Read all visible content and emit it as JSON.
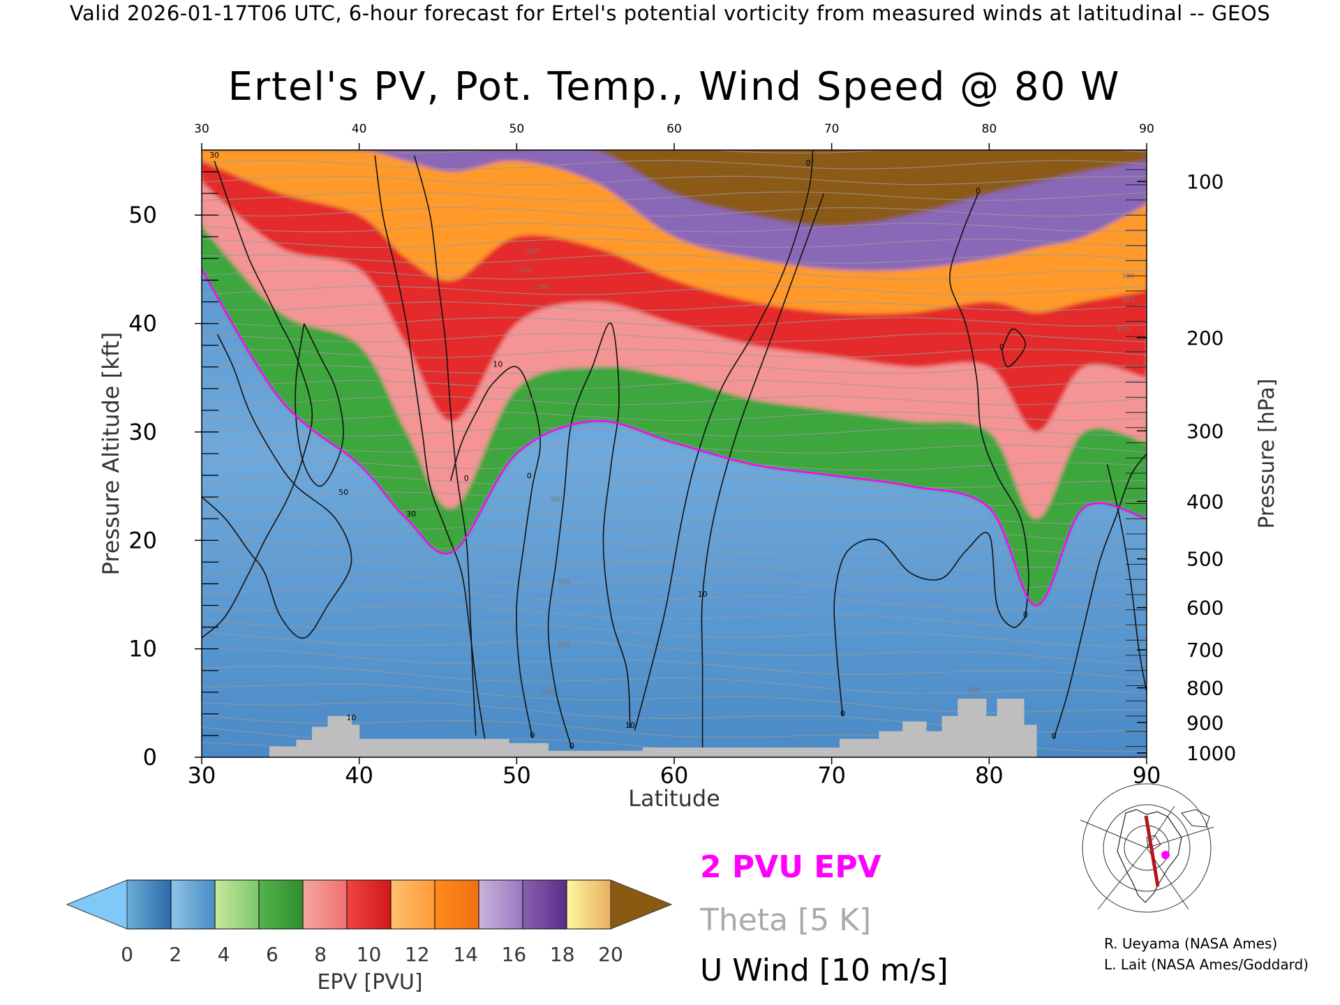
{
  "header": {
    "valid_line": "Valid 2026-01-17T06 UTC, 6-hour forecast for Ertel's potential vorticity from measured winds at latitudinal -- GEOS"
  },
  "chart_data": {
    "type": "heatmap",
    "title": "Ertel's PV, Pot. Temp., Wind Speed @ 80 W",
    "xlabel": "Latitude",
    "ylabel_left": "Pressure Altitude [kft]",
    "ylabel_right": "Pressure [hPa]",
    "xlim": [
      30,
      90
    ],
    "ylim": [
      0,
      56
    ],
    "x_ticks": [
      30,
      40,
      50,
      60,
      70,
      80,
      90
    ],
    "top_x_ticks": [
      "30",
      "40",
      "50",
      "60",
      "70",
      "80",
      "90"
    ],
    "y_ticks": [
      0,
      10,
      20,
      30,
      40,
      50
    ],
    "pressure_ticks": [
      {
        "hpa": "100",
        "kft": 53.1
      },
      {
        "hpa": "200",
        "kft": 38.7
      },
      {
        "hpa": "300",
        "kft": 30.1
      },
      {
        "hpa": "400",
        "kft": 23.6
      },
      {
        "hpa": "500",
        "kft": 18.3
      },
      {
        "hpa": "600",
        "kft": 13.8
      },
      {
        "hpa": "700",
        "kft": 9.9
      },
      {
        "hpa": "800",
        "kft": 6.4
      },
      {
        "hpa": "900",
        "kft": 3.2
      },
      {
        "hpa": "1000",
        "kft": 0.4
      }
    ],
    "lat_samples": [
      30,
      35,
      40,
      43,
      46,
      50,
      55,
      60,
      65,
      70,
      75,
      80,
      83,
      86,
      90
    ],
    "tropopause_kft": [
      45,
      33,
      27,
      22,
      19,
      28,
      31,
      29,
      27,
      26,
      25,
      23,
      14,
      23,
      22
    ],
    "epv_layers_kft": {
      "green_top": [
        49,
        41,
        38,
        30,
        23,
        34,
        36,
        35,
        33,
        32,
        31,
        30,
        22,
        30,
        29
      ],
      "pink_top": [
        53,
        47,
        45,
        38,
        31,
        40,
        42,
        40,
        38,
        37,
        36,
        36,
        30,
        36,
        35
      ],
      "red_top": [
        55,
        52,
        50,
        46,
        44,
        48,
        47,
        44,
        42,
        41,
        41,
        42,
        41,
        42,
        43
      ],
      "orange_top": [
        56,
        56,
        56,
        55,
        54,
        55,
        53,
        48,
        46,
        45,
        45,
        46,
        47,
        48,
        51
      ],
      "purple_top": [
        56,
        56,
        56,
        56,
        56,
        56,
        56,
        52,
        50,
        49,
        50,
        52,
        53,
        54,
        55
      ],
      "brown_top": [
        56,
        56,
        56,
        56,
        56,
        56,
        56,
        55,
        53,
        52,
        53,
        54,
        55,
        55,
        56
      ]
    },
    "wind_contour_labels": [
      {
        "text": "30",
        "lat": 30.8,
        "kft": 55.3
      },
      {
        "text": "50",
        "lat": 39.0,
        "kft": 24.2
      },
      {
        "text": "30",
        "lat": 43.3,
        "kft": 22.2
      },
      {
        "text": "10",
        "lat": 39.5,
        "kft": 3.4
      },
      {
        "text": "0",
        "lat": 46.8,
        "kft": 25.5
      },
      {
        "text": "10",
        "lat": 48.8,
        "kft": 36.0
      },
      {
        "text": "0",
        "lat": 50.8,
        "kft": 25.7
      },
      {
        "text": "0",
        "lat": 51.0,
        "kft": 1.8
      },
      {
        "text": "0",
        "lat": 53.5,
        "kft": 0.8
      },
      {
        "text": "10",
        "lat": 57.2,
        "kft": 2.7
      },
      {
        "text": "10",
        "lat": 61.8,
        "kft": 14.8
      },
      {
        "text": "0",
        "lat": 68.5,
        "kft": 54.6
      },
      {
        "text": "0",
        "lat": 79.3,
        "kft": 52.0
      },
      {
        "text": "0",
        "lat": 80.8,
        "kft": 37.6
      },
      {
        "text": "0",
        "lat": 82.3,
        "kft": 12.9
      },
      {
        "text": "0",
        "lat": 84.1,
        "kft": 1.7
      },
      {
        "text": "0",
        "lat": 70.7,
        "kft": 3.8
      }
    ],
    "theta_labels": [
      {
        "text": "400",
        "lat": 51.0,
        "kft": 46.5
      },
      {
        "text": "380",
        "lat": 51.7,
        "kft": 43.2
      },
      {
        "text": "370",
        "lat": 50.5,
        "kft": 44.7
      },
      {
        "text": "320",
        "lat": 50.8,
        "kft": 32.9
      },
      {
        "text": "300",
        "lat": 52.5,
        "kft": 23.6
      },
      {
        "text": "300",
        "lat": 53.0,
        "kft": 16.0
      },
      {
        "text": "290",
        "lat": 53.0,
        "kft": 10.2
      },
      {
        "text": "280",
        "lat": 52.0,
        "kft": 5.8
      },
      {
        "text": "290",
        "lat": 79.0,
        "kft": 6.0
      },
      {
        "text": "330",
        "lat": 88.8,
        "kft": 44.2
      },
      {
        "text": "340",
        "lat": 88.8,
        "kft": 42.0
      },
      {
        "text": "350",
        "lat": 88.5,
        "kft": 39.3
      }
    ],
    "terrain": [
      {
        "lat0": 30.0,
        "lat1": 34.3,
        "kft": 0
      },
      {
        "lat0": 34.3,
        "lat1": 36.0,
        "kft": 1.0
      },
      {
        "lat0": 36.0,
        "lat1": 37.0,
        "kft": 1.6
      },
      {
        "lat0": 37.0,
        "lat1": 38.0,
        "kft": 2.8
      },
      {
        "lat0": 38.0,
        "lat1": 39.5,
        "kft": 3.8
      },
      {
        "lat0": 39.5,
        "lat1": 40.0,
        "kft": 3.0
      },
      {
        "lat0": 40.0,
        "lat1": 49.5,
        "kft": 1.7
      },
      {
        "lat0": 49.5,
        "lat1": 52.0,
        "kft": 1.3
      },
      {
        "lat0": 52.0,
        "lat1": 58.0,
        "kft": 0.6
      },
      {
        "lat0": 58.0,
        "lat1": 70.5,
        "kft": 0.9
      },
      {
        "lat0": 70.5,
        "lat1": 73.0,
        "kft": 1.7
      },
      {
        "lat0": 73.0,
        "lat1": 74.5,
        "kft": 2.4
      },
      {
        "lat0": 74.5,
        "lat1": 76.0,
        "kft": 3.3
      },
      {
        "lat0": 76.0,
        "lat1": 77.0,
        "kft": 2.4
      },
      {
        "lat0": 77.0,
        "lat1": 78.0,
        "kft": 3.8
      },
      {
        "lat0": 78.0,
        "lat1": 79.8,
        "kft": 5.4
      },
      {
        "lat0": 79.8,
        "lat1": 80.5,
        "kft": 3.8
      },
      {
        "lat0": 80.5,
        "lat1": 82.2,
        "kft": 5.4
      },
      {
        "lat0": 82.2,
        "lat1": 83.0,
        "kft": 3.0
      },
      {
        "lat0": 83.0,
        "lat1": 90.0,
        "kft": 0
      }
    ]
  },
  "colorbar": {
    "label": "EPV [PVU]",
    "ticks": [
      "0",
      "2",
      "4",
      "6",
      "8",
      "10",
      "12",
      "14",
      "16",
      "18",
      "20"
    ],
    "under_color": "#7fc8f8",
    "over_color": "#8b5a12",
    "bins": [
      [
        "#6aaed6",
        "#2b6aa9"
      ],
      [
        "#8ec4e6",
        "#4a8cc4"
      ],
      [
        "#c8ea9c",
        "#7cc66a"
      ],
      [
        "#55b24c",
        "#2e8f2e"
      ],
      [
        "#f4a6a0",
        "#f07070"
      ],
      [
        "#f04444",
        "#d01818"
      ],
      [
        "#ffc070",
        "#ff9a38"
      ],
      [
        "#ff8a1c",
        "#f07010"
      ],
      [
        "#c9b3da",
        "#9a78c0"
      ],
      [
        "#8a60b0",
        "#5a2d88"
      ],
      [
        "#fff6a0",
        "#e8b060"
      ]
    ]
  },
  "legend": {
    "epv_line": "2 PVU EPV",
    "theta_line": "Theta [5 K]",
    "wind_line": "U Wind [10 m/s]",
    "epv_color": "#ff00ff",
    "theta_color": "#aaaaaa",
    "wind_color": "#000000"
  },
  "credits": {
    "line1": "R. Ueyama (NASA Ames)",
    "line2": "L. Lait (NASA Ames/Goddard)"
  },
  "colors": {
    "terrain": "#bebebe",
    "troposphere": "#5b9bd2",
    "green": "#3da63d",
    "pink": "#f49494",
    "red": "#e42a2a",
    "orange": "#ff9a2c",
    "purple": "#8a68b8",
    "brown": "#8b5a12"
  }
}
